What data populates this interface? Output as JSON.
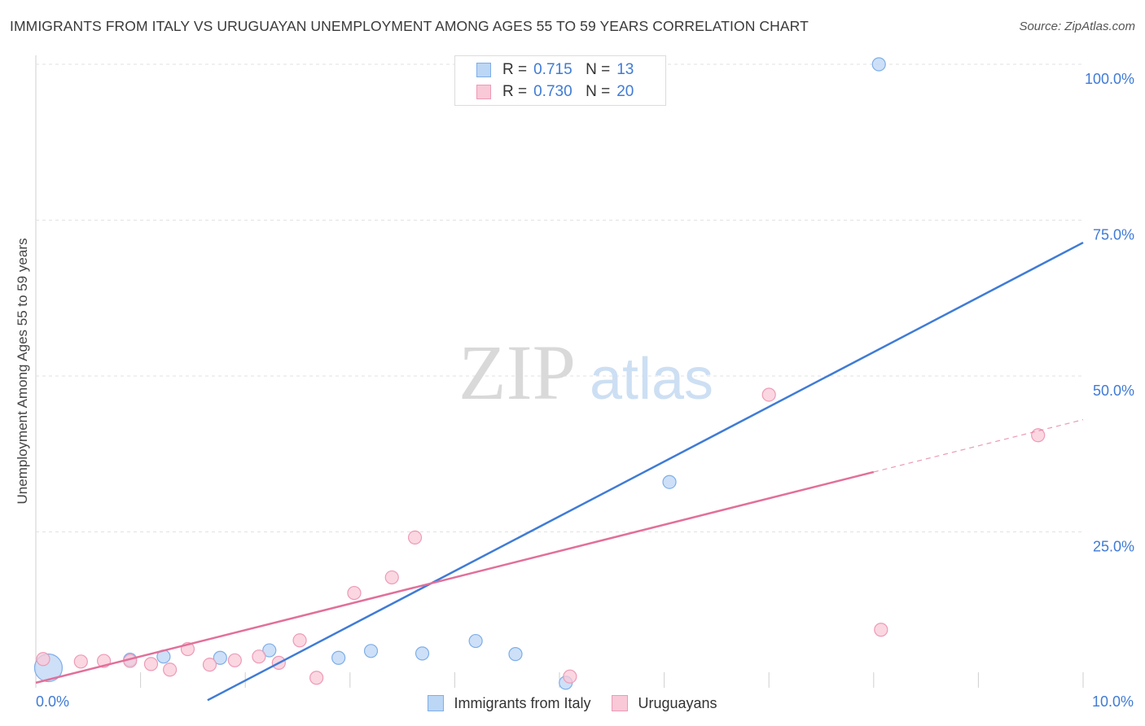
{
  "title": "IMMIGRANTS FROM ITALY VS URUGUAYAN UNEMPLOYMENT AMONG AGES 55 TO 59 YEARS CORRELATION CHART",
  "source": "Source: ZipAtlas.com",
  "watermark": {
    "zip": "ZIP",
    "atlas": "atlas"
  },
  "legend": {
    "rows": [
      {
        "r_label": "R =",
        "r_value": "0.715",
        "n_label": "N =",
        "n_value": "13",
        "color": "#bcd6f5",
        "border": "#7eaee8"
      },
      {
        "r_label": "R =",
        "r_value": "0.730",
        "n_label": "N =",
        "n_value": "20",
        "color": "#f9c9d8",
        "border": "#ee9ab5"
      }
    ]
  },
  "bottom_legend": [
    "Immigrants from Italy",
    "Uruguayans"
  ],
  "chart_data": {
    "type": "scatter",
    "title": "IMMIGRANTS FROM ITALY VS URUGUAYAN UNEMPLOYMENT AMONG AGES 55 TO 59 YEARS CORRELATION CHART",
    "xlabel": "",
    "ylabel": "Unemployment Among Ages 55 to 59 years",
    "xlim": [
      0,
      10
    ],
    "ylim": [
      0,
      100
    ],
    "x_tick_labels": [
      "0.0%",
      "10.0%"
    ],
    "y_ticks": [
      25,
      50,
      75,
      100
    ],
    "y_tick_labels": [
      "25.0%",
      "50.0%",
      "75.0%",
      "100.0%"
    ],
    "grid": true,
    "series": [
      {
        "name": "Immigrants from Italy",
        "color": "#3f7bd6",
        "fill": "#bcd6f5",
        "points": [
          {
            "x": 0.12,
            "y": 3.2,
            "big": true
          },
          {
            "x": 0.9,
            "y": 4.5
          },
          {
            "x": 1.22,
            "y": 5.0
          },
          {
            "x": 1.76,
            "y": 4.8
          },
          {
            "x": 2.23,
            "y": 6.0
          },
          {
            "x": 2.89,
            "y": 4.8
          },
          {
            "x": 3.2,
            "y": 5.9
          },
          {
            "x": 3.69,
            "y": 5.5
          },
          {
            "x": 4.2,
            "y": 7.5
          },
          {
            "x": 4.58,
            "y": 5.4
          },
          {
            "x": 5.06,
            "y": 0.8
          },
          {
            "x": 6.05,
            "y": 33.0
          },
          {
            "x": 8.05,
            "y": 100.0
          }
        ],
        "trend": {
          "x": [
            1.64,
            10.0
          ],
          "y": [
            -2.0,
            71.4
          ]
        }
      },
      {
        "name": "Uruguayans",
        "color": "#e26f99",
        "fill": "#f9c9d8",
        "points": [
          {
            "x": 0.07,
            "y": 4.6
          },
          {
            "x": 0.43,
            "y": 4.2
          },
          {
            "x": 0.65,
            "y": 4.3
          },
          {
            "x": 0.9,
            "y": 4.3
          },
          {
            "x": 1.1,
            "y": 3.8
          },
          {
            "x": 1.28,
            "y": 2.9
          },
          {
            "x": 1.45,
            "y": 6.2
          },
          {
            "x": 1.66,
            "y": 3.7
          },
          {
            "x": 1.9,
            "y": 4.4
          },
          {
            "x": 2.13,
            "y": 5.0
          },
          {
            "x": 2.32,
            "y": 4.0
          },
          {
            "x": 2.52,
            "y": 7.6
          },
          {
            "x": 2.68,
            "y": 1.6
          },
          {
            "x": 3.04,
            "y": 15.2
          },
          {
            "x": 3.4,
            "y": 17.7
          },
          {
            "x": 3.62,
            "y": 24.1
          },
          {
            "x": 5.1,
            "y": 1.8
          },
          {
            "x": 7.0,
            "y": 47.0
          },
          {
            "x": 8.07,
            "y": 9.3
          },
          {
            "x": 9.57,
            "y": 40.5
          }
        ],
        "trend": {
          "x": [
            0.0,
            8.0
          ],
          "y": [
            0.8,
            34.6
          ]
        },
        "trend_dashed": {
          "x": [
            8.0,
            10.0
          ],
          "y": [
            34.6,
            43.0
          ]
        }
      }
    ]
  }
}
